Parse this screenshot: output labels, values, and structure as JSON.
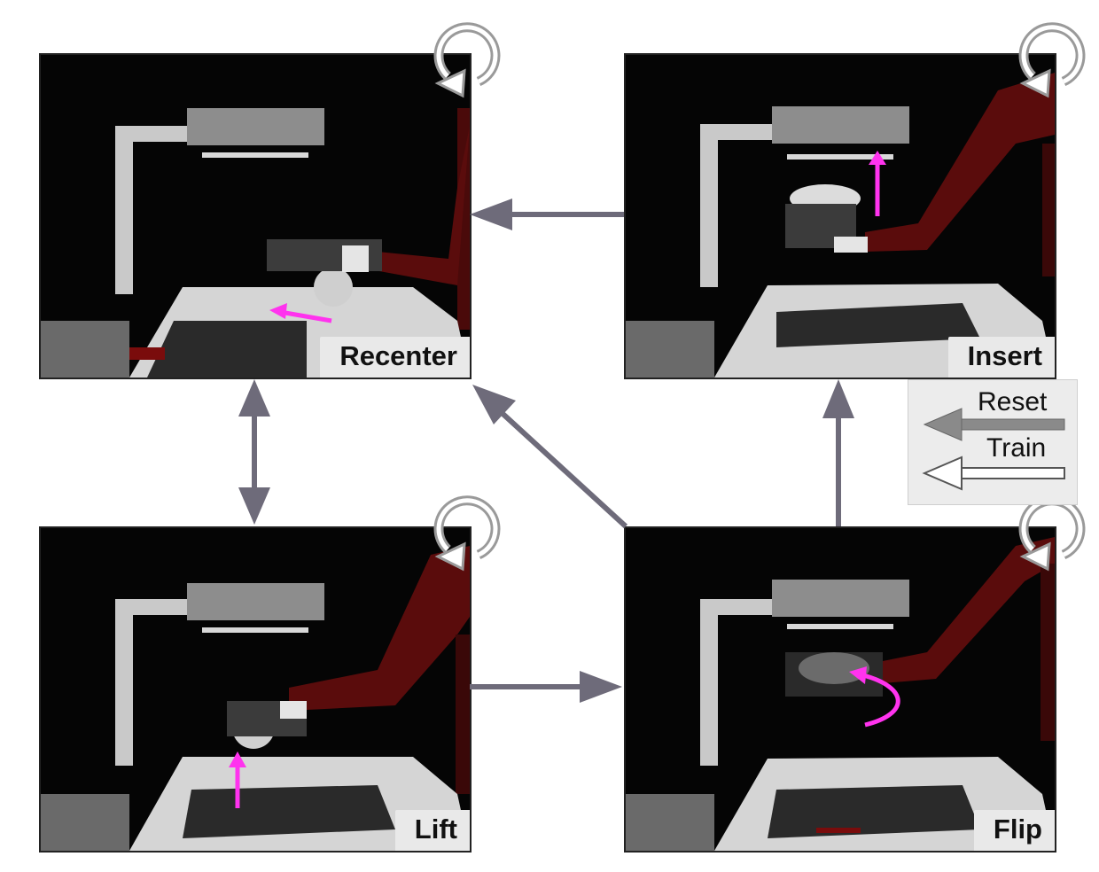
{
  "panels": {
    "recenter": {
      "label": "Recenter"
    },
    "insert": {
      "label": "Insert"
    },
    "lift": {
      "label": "Lift"
    },
    "flip": {
      "label": "Flip"
    }
  },
  "legend": {
    "reset_label": "Reset",
    "train_label": "Train"
  },
  "colors": {
    "transition_arrow": "#6e6b7a",
    "motion_arrow": "#ff33ee",
    "robot": "#5a0c0c",
    "loop_arrow": "#aaaaaa"
  }
}
